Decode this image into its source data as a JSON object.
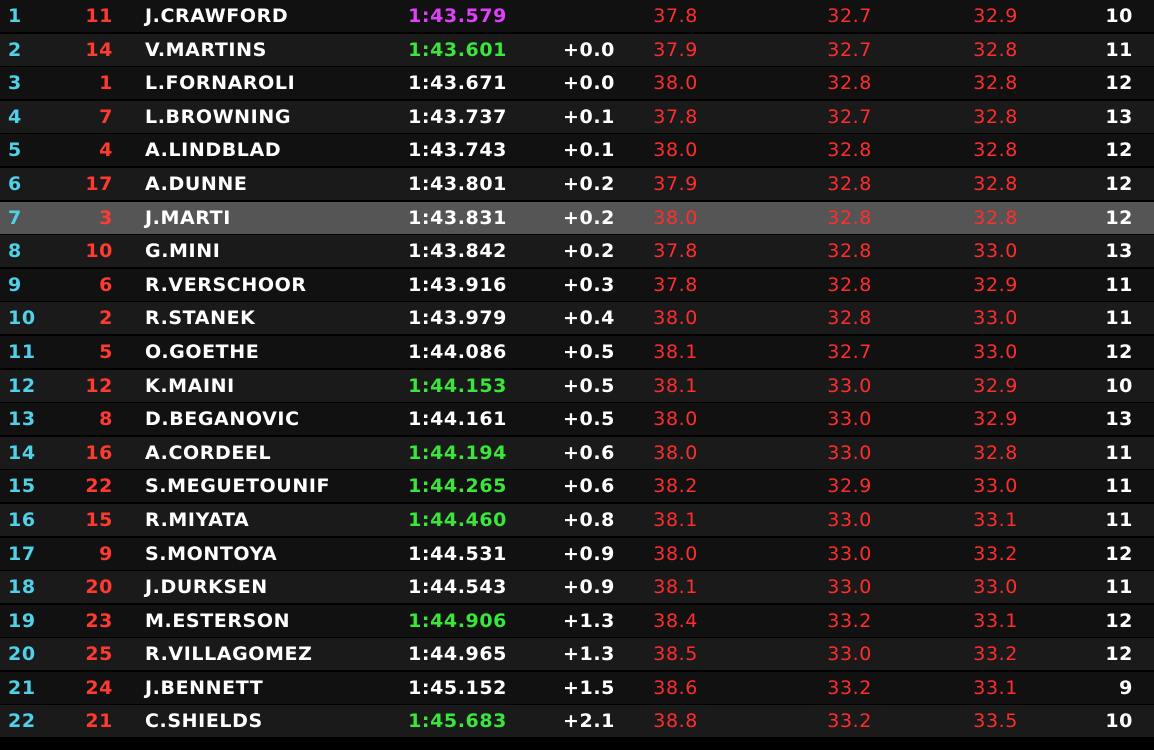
{
  "colors": {
    "position": "#4fd1e8",
    "car_number": "#ff3b30",
    "driver": "#ffffff",
    "time_normal": "#ffffff",
    "time_personal_best": "#39e639",
    "time_overall_best": "#e040fb",
    "sector": "#ff2d2d",
    "laps": "#ffffff"
  },
  "rows": [
    {
      "pos": "1",
      "num": "11",
      "driver": "J.CRAWFORD",
      "time": "1:43.579",
      "time_status": "overall_best",
      "gap": "",
      "s1": "37.8",
      "s2": "32.7",
      "s3": "32.9",
      "laps": "10"
    },
    {
      "pos": "2",
      "num": "14",
      "driver": "V.MARTINS",
      "time": "1:43.601",
      "time_status": "personal_best",
      "gap": "+0.0",
      "s1": "37.9",
      "s2": "32.7",
      "s3": "32.8",
      "laps": "11"
    },
    {
      "pos": "3",
      "num": "1",
      "driver": "L.FORNAROLI",
      "time": "1:43.671",
      "time_status": "normal",
      "gap": "+0.0",
      "s1": "38.0",
      "s2": "32.8",
      "s3": "32.8",
      "laps": "12"
    },
    {
      "pos": "4",
      "num": "7",
      "driver": "L.BROWNING",
      "time": "1:43.737",
      "time_status": "normal",
      "gap": "+0.1",
      "s1": "37.8",
      "s2": "32.7",
      "s3": "32.8",
      "laps": "13"
    },
    {
      "pos": "5",
      "num": "4",
      "driver": "A.LINDBLAD",
      "time": "1:43.743",
      "time_status": "normal",
      "gap": "+0.1",
      "s1": "38.0",
      "s2": "32.8",
      "s3": "32.8",
      "laps": "12"
    },
    {
      "pos": "6",
      "num": "17",
      "driver": "A.DUNNE",
      "time": "1:43.801",
      "time_status": "normal",
      "gap": "+0.2",
      "s1": "37.9",
      "s2": "32.8",
      "s3": "32.8",
      "laps": "12"
    },
    {
      "pos": "7",
      "num": "3",
      "driver": "J.MARTI",
      "time": "1:43.831",
      "time_status": "normal",
      "gap": "+0.2",
      "s1": "38.0",
      "s2": "32.8",
      "s3": "32.8",
      "laps": "12",
      "highlight": true
    },
    {
      "pos": "8",
      "num": "10",
      "driver": "G.MINI",
      "time": "1:43.842",
      "time_status": "normal",
      "gap": "+0.2",
      "s1": "37.8",
      "s2": "32.8",
      "s3": "33.0",
      "laps": "13"
    },
    {
      "pos": "9",
      "num": "6",
      "driver": "R.VERSCHOOR",
      "time": "1:43.916",
      "time_status": "normal",
      "gap": "+0.3",
      "s1": "37.8",
      "s2": "32.8",
      "s3": "32.9",
      "laps": "11"
    },
    {
      "pos": "10",
      "num": "2",
      "driver": "R.STANEK",
      "time": "1:43.979",
      "time_status": "normal",
      "gap": "+0.4",
      "s1": "38.0",
      "s2": "32.8",
      "s3": "33.0",
      "laps": "11"
    },
    {
      "pos": "11",
      "num": "5",
      "driver": "O.GOETHE",
      "time": "1:44.086",
      "time_status": "normal",
      "gap": "+0.5",
      "s1": "38.1",
      "s2": "32.7",
      "s3": "33.0",
      "laps": "12"
    },
    {
      "pos": "12",
      "num": "12",
      "driver": "K.MAINI",
      "time": "1:44.153",
      "time_status": "personal_best",
      "gap": "+0.5",
      "s1": "38.1",
      "s2": "33.0",
      "s3": "32.9",
      "laps": "10"
    },
    {
      "pos": "13",
      "num": "8",
      "driver": "D.BEGANOVIC",
      "time": "1:44.161",
      "time_status": "normal",
      "gap": "+0.5",
      "s1": "38.0",
      "s2": "33.0",
      "s3": "32.9",
      "laps": "13"
    },
    {
      "pos": "14",
      "num": "16",
      "driver": "A.CORDEEL",
      "time": "1:44.194",
      "time_status": "personal_best",
      "gap": "+0.6",
      "s1": "38.0",
      "s2": "33.0",
      "s3": "32.8",
      "laps": "11"
    },
    {
      "pos": "15",
      "num": "22",
      "driver": "S.MEGUETOUNIF",
      "time": "1:44.265",
      "time_status": "personal_best",
      "gap": "+0.6",
      "s1": "38.2",
      "s2": "32.9",
      "s3": "33.0",
      "laps": "11"
    },
    {
      "pos": "16",
      "num": "15",
      "driver": "R.MIYATA",
      "time": "1:44.460",
      "time_status": "personal_best",
      "gap": "+0.8",
      "s1": "38.1",
      "s2": "33.0",
      "s3": "33.1",
      "laps": "11"
    },
    {
      "pos": "17",
      "num": "9",
      "driver": "S.MONTOYA",
      "time": "1:44.531",
      "time_status": "normal",
      "gap": "+0.9",
      "s1": "38.0",
      "s2": "33.0",
      "s3": "33.2",
      "laps": "12"
    },
    {
      "pos": "18",
      "num": "20",
      "driver": "J.DURKSEN",
      "time": "1:44.543",
      "time_status": "normal",
      "gap": "+0.9",
      "s1": "38.1",
      "s2": "33.0",
      "s3": "33.0",
      "laps": "11"
    },
    {
      "pos": "19",
      "num": "23",
      "driver": "M.ESTERSON",
      "time": "1:44.906",
      "time_status": "personal_best",
      "gap": "+1.3",
      "s1": "38.4",
      "s2": "33.2",
      "s3": "33.1",
      "laps": "12"
    },
    {
      "pos": "20",
      "num": "25",
      "driver": "R.VILLAGOMEZ",
      "time": "1:44.965",
      "time_status": "normal",
      "gap": "+1.3",
      "s1": "38.5",
      "s2": "33.0",
      "s3": "33.2",
      "laps": "12"
    },
    {
      "pos": "21",
      "num": "24",
      "driver": "J.BENNETT",
      "time": "1:45.152",
      "time_status": "normal",
      "gap": "+1.5",
      "s1": "38.6",
      "s2": "33.2",
      "s3": "33.1",
      "laps": "9"
    },
    {
      "pos": "22",
      "num": "21",
      "driver": "C.SHIELDS",
      "time": "1:45.683",
      "time_status": "personal_best",
      "gap": "+2.1",
      "s1": "38.8",
      "s2": "33.2",
      "s3": "33.5",
      "laps": "10"
    }
  ]
}
